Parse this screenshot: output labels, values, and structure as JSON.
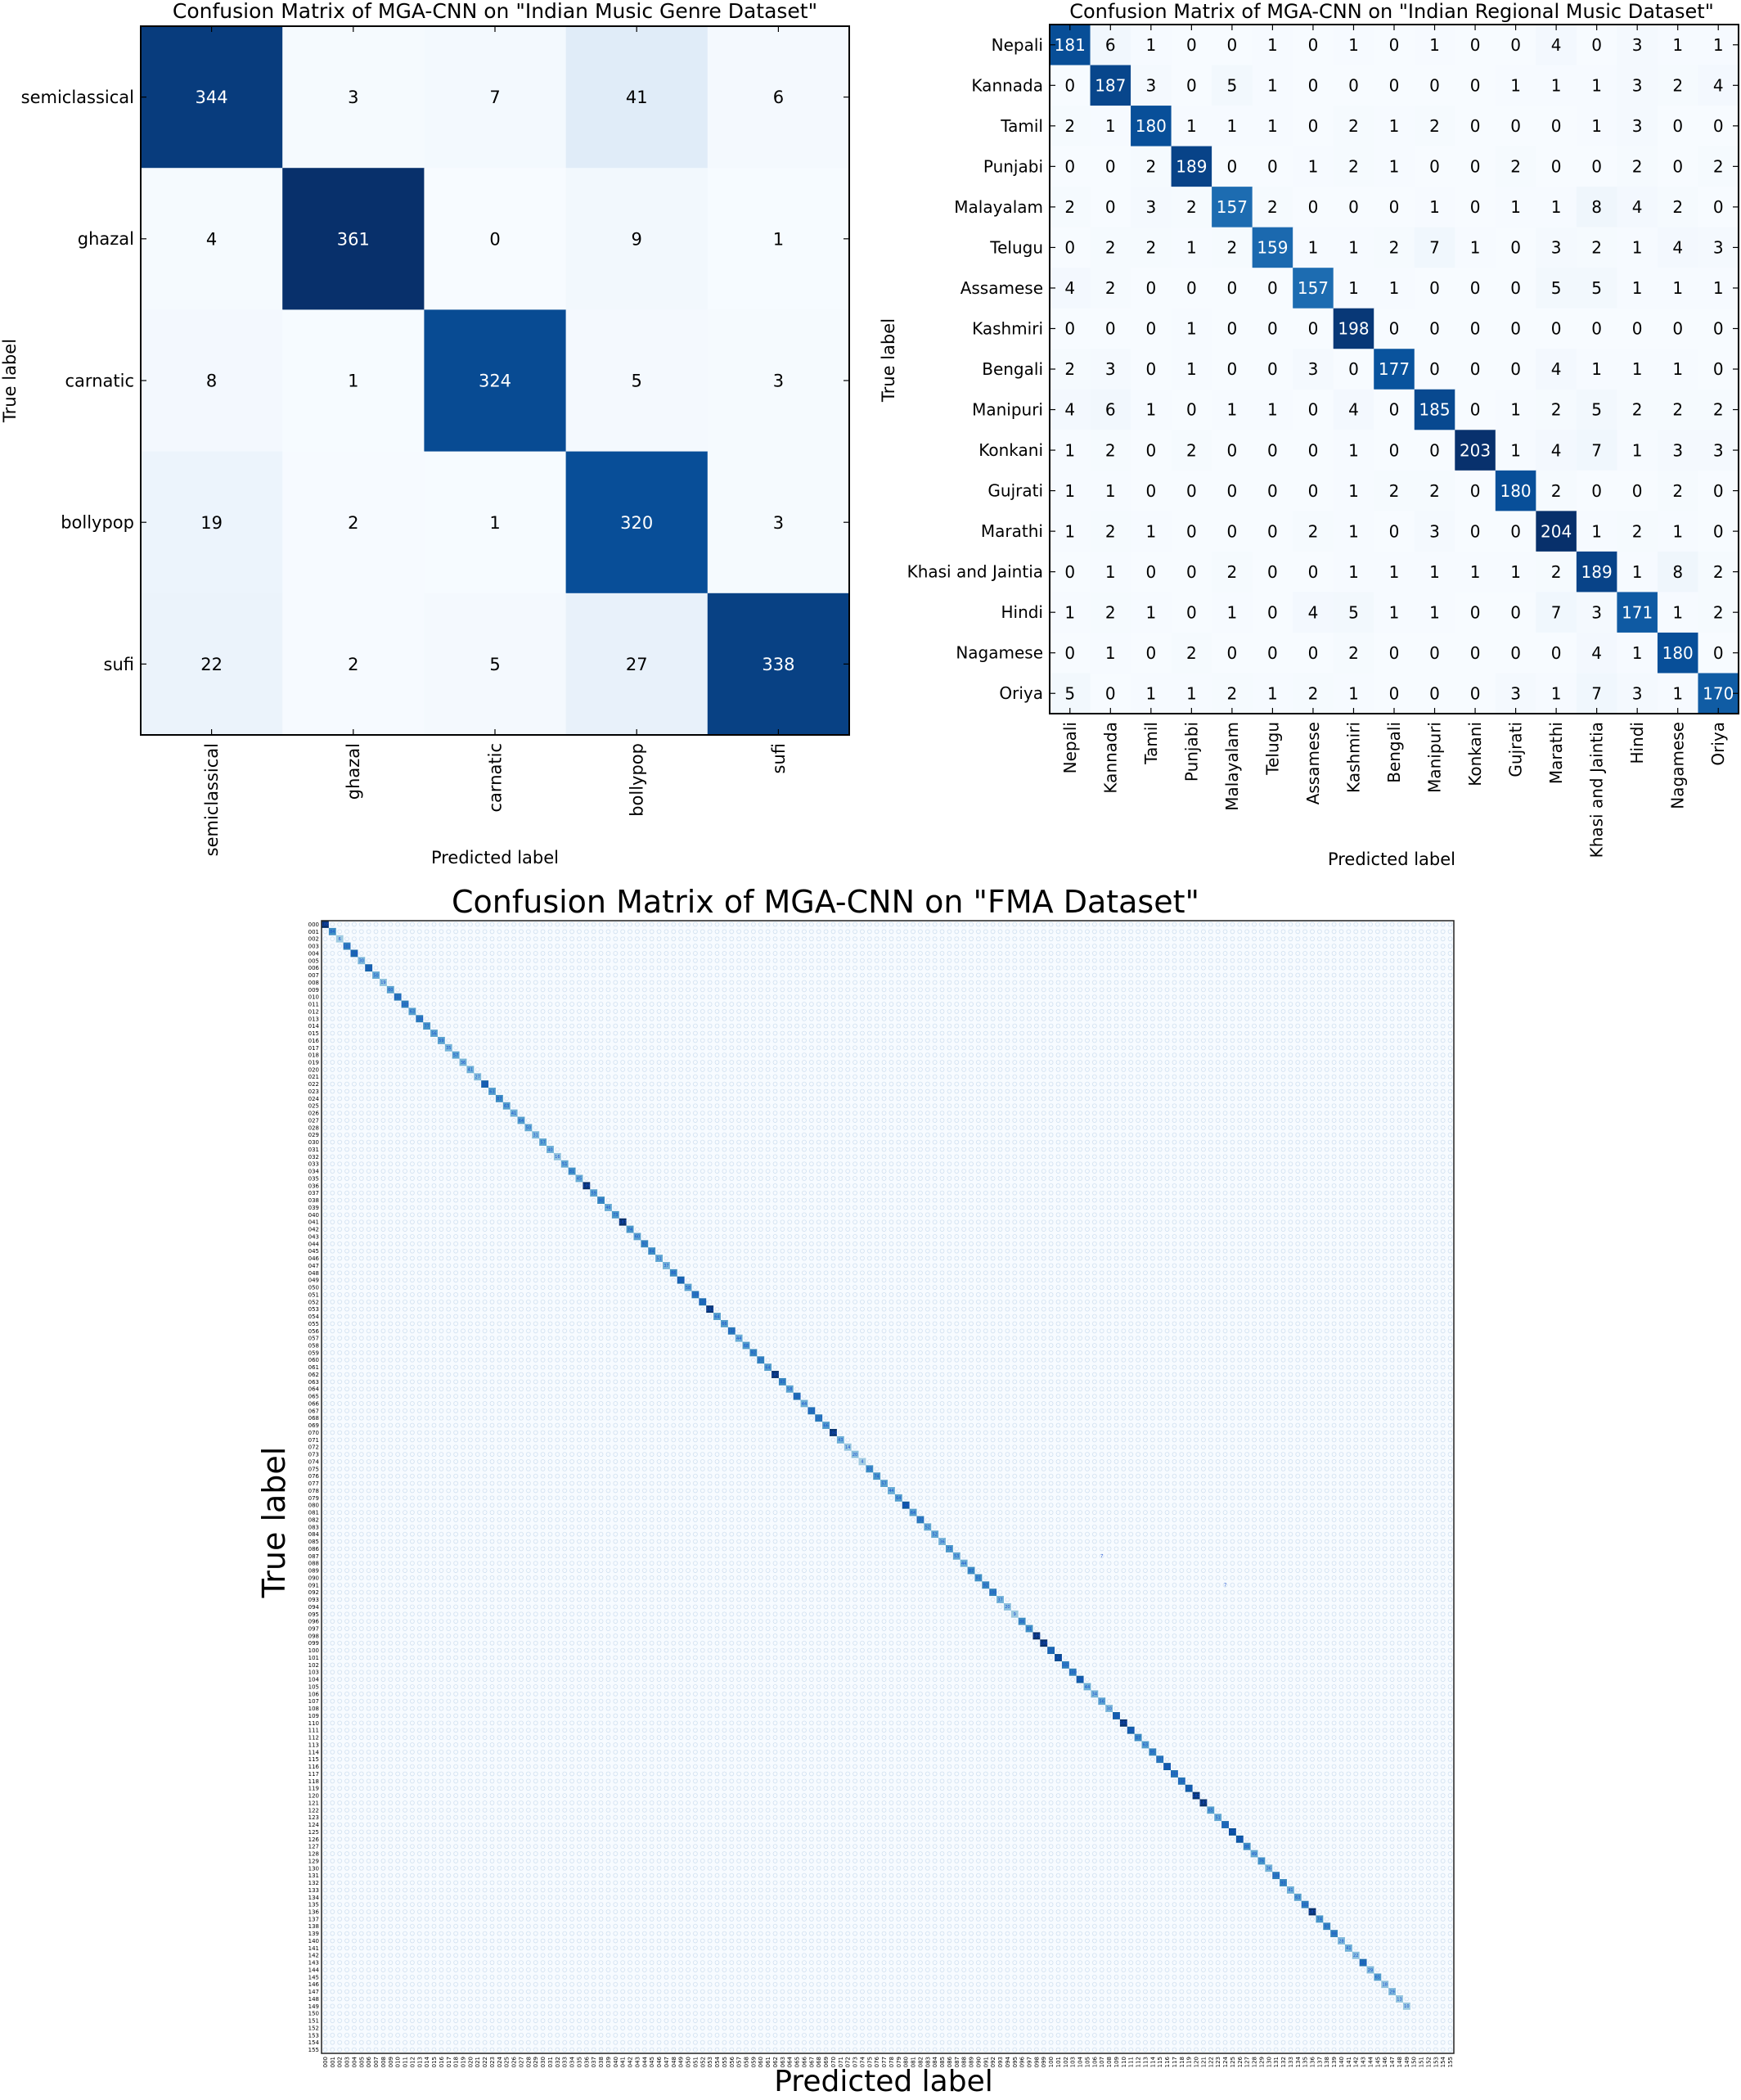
{
  "chart_data": [
    {
      "type": "heatmap",
      "title": "Confusion Matrix of MGA-CNN on \"Indian Music Genre Dataset\"",
      "xlabel": "Predicted label",
      "ylabel": "True label",
      "labels": [
        "semiclassical",
        "ghazal",
        "carnatic",
        "bollypop",
        "sufi"
      ],
      "matrix": [
        [
          344,
          3,
          7,
          41,
          6
        ],
        [
          4,
          361,
          0,
          9,
          1
        ],
        [
          8,
          1,
          324,
          5,
          3
        ],
        [
          19,
          2,
          1,
          320,
          3
        ],
        [
          22,
          2,
          5,
          27,
          338
        ]
      ],
      "colormap": "Blues"
    },
    {
      "type": "heatmap",
      "title": "Confusion Matrix of MGA-CNN on \"Indian Regional Music Dataset\"",
      "xlabel": "Predicted label",
      "ylabel": "True label",
      "labels": [
        "Nepali",
        "Kannada",
        "Tamil",
        "Punjabi",
        "Malayalam",
        "Telugu",
        "Assamese",
        "Kashmiri",
        "Bengali",
        "Manipuri",
        "Konkani",
        "Gujrati",
        "Marathi",
        "Khasi and Jaintia",
        "Hindi",
        "Nagamese",
        "Oriya"
      ],
      "matrix": [
        [
          181,
          6,
          1,
          0,
          0,
          1,
          0,
          1,
          0,
          1,
          0,
          0,
          4,
          0,
          3,
          1,
          1
        ],
        [
          0,
          187,
          3,
          0,
          5,
          1,
          0,
          0,
          0,
          0,
          0,
          1,
          1,
          1,
          3,
          2,
          4
        ],
        [
          2,
          1,
          180,
          1,
          1,
          1,
          0,
          2,
          1,
          2,
          0,
          0,
          0,
          1,
          3,
          0,
          0
        ],
        [
          0,
          0,
          2,
          189,
          0,
          0,
          1,
          2,
          1,
          0,
          0,
          2,
          0,
          0,
          2,
          0,
          2
        ],
        [
          2,
          0,
          3,
          2,
          157,
          2,
          0,
          0,
          0,
          1,
          0,
          1,
          1,
          8,
          4,
          2,
          0
        ],
        [
          0,
          2,
          2,
          1,
          2,
          159,
          1,
          1,
          2,
          7,
          1,
          0,
          3,
          2,
          1,
          4,
          3
        ],
        [
          4,
          2,
          0,
          0,
          0,
          0,
          157,
          1,
          1,
          0,
          0,
          0,
          5,
          5,
          1,
          1,
          1
        ],
        [
          0,
          0,
          0,
          1,
          0,
          0,
          0,
          198,
          0,
          0,
          0,
          0,
          0,
          0,
          0,
          0,
          0
        ],
        [
          2,
          3,
          0,
          1,
          0,
          0,
          3,
          0,
          177,
          0,
          0,
          0,
          4,
          1,
          1,
          1,
          0
        ],
        [
          4,
          6,
          1,
          0,
          1,
          1,
          0,
          4,
          0,
          185,
          0,
          1,
          2,
          5,
          2,
          2,
          2
        ],
        [
          1,
          2,
          0,
          2,
          0,
          0,
          0,
          1,
          0,
          0,
          203,
          1,
          4,
          7,
          1,
          3,
          3
        ],
        [
          1,
          1,
          0,
          0,
          0,
          0,
          0,
          1,
          2,
          2,
          0,
          180,
          2,
          0,
          0,
          2,
          0
        ],
        [
          1,
          2,
          1,
          0,
          0,
          0,
          2,
          1,
          0,
          3,
          0,
          0,
          204,
          1,
          2,
          1,
          0
        ],
        [
          0,
          1,
          0,
          0,
          2,
          0,
          0,
          1,
          1,
          1,
          1,
          1,
          2,
          189,
          1,
          8,
          2
        ],
        [
          1,
          2,
          1,
          0,
          1,
          0,
          4,
          5,
          1,
          1,
          0,
          0,
          7,
          3,
          171,
          1,
          2
        ],
        [
          0,
          1,
          0,
          2,
          0,
          0,
          0,
          2,
          0,
          0,
          0,
          0,
          0,
          4,
          1,
          180,
          0
        ],
        [
          5,
          0,
          1,
          1,
          2,
          1,
          2,
          1,
          0,
          0,
          0,
          3,
          1,
          7,
          3,
          1,
          170
        ]
      ],
      "colormap": "Blues"
    },
    {
      "type": "heatmap",
      "title": "Confusion Matrix of MGA-CNN on \"FMA Dataset\"",
      "xlabel": "Predicted label",
      "ylabel": "True label",
      "class_count": 156,
      "labels": [
        "000",
        "001",
        "002",
        "003",
        "004",
        "005",
        "006",
        "007",
        "008",
        "009",
        "010",
        "011",
        "012",
        "013",
        "014",
        "015",
        "016",
        "017",
        "018",
        "019",
        "020",
        "021",
        "022",
        "023",
        "024",
        "025",
        "026",
        "027",
        "028",
        "029",
        "030",
        "031",
        "032",
        "033",
        "034",
        "035",
        "036",
        "037",
        "038",
        "039",
        "040",
        "041",
        "042",
        "043",
        "044",
        "045",
        "046",
        "047",
        "048",
        "049",
        "050",
        "051",
        "052",
        "053",
        "054",
        "055",
        "056",
        "057",
        "058",
        "059",
        "060",
        "061",
        "062",
        "063",
        "064",
        "065",
        "066",
        "067",
        "068",
        "069",
        "070",
        "071",
        "072",
        "073",
        "074",
        "075",
        "076",
        "077",
        "078",
        "079",
        "080",
        "081",
        "082",
        "083",
        "084",
        "085",
        "086",
        "087",
        "088",
        "089",
        "090",
        "091",
        "092",
        "093",
        "094",
        "095",
        "096",
        "097",
        "098",
        "099",
        "100",
        "101",
        "102",
        "103",
        "104",
        "105",
        "106",
        "107",
        "108",
        "109",
        "110",
        "111",
        "112",
        "113",
        "114",
        "115",
        "116",
        "117",
        "118",
        "119",
        "120",
        "121",
        "122",
        "123",
        "124",
        "125",
        "126",
        "127",
        "128",
        "129",
        "130",
        "131",
        "132",
        "133",
        "134",
        "135",
        "136",
        "137",
        "138",
        "139",
        "140",
        "141",
        "142",
        "143",
        "144",
        "145",
        "146",
        "147",
        "148",
        "149",
        "150",
        "151",
        "152",
        "153",
        "154",
        "155"
      ],
      "diagonal": [
        188,
        84,
        6,
        102,
        128,
        30,
        131,
        50,
        19,
        60,
        112,
        103,
        63,
        104,
        77,
        56,
        59,
        35,
        57,
        36,
        41,
        27,
        133,
        63,
        87,
        63,
        41,
        64,
        50,
        31,
        57,
        40,
        16,
        51,
        81,
        45,
        189,
        59,
        90,
        46,
        73,
        187,
        74,
        60,
        92,
        84,
        51,
        37,
        86,
        129,
        58,
        108,
        120,
        182,
        64,
        66,
        110,
        44,
        68,
        92,
        97,
        64,
        187,
        93,
        58,
        120,
        44,
        115,
        107,
        66,
        184,
        43,
        14,
        20,
        4,
        83,
        74,
        57,
        44,
        64,
        146,
        64,
        102,
        52,
        52,
        36,
        73,
        53,
        44,
        87,
        81,
        92,
        100,
        37,
        20,
        9,
        86,
        81,
        189,
        188,
        127,
        163,
        102,
        100,
        140,
        44,
        34,
        56,
        30,
        136,
        183,
        138,
        87,
        63,
        95,
        107,
        140,
        114,
        114,
        137,
        182,
        187,
        65,
        51,
        120,
        155,
        145,
        86,
        49,
        76,
        36,
        104,
        93,
        41,
        63,
        102,
        187,
        74,
        93,
        98,
        28,
        41,
        22,
        121,
        29,
        65,
        18,
        29,
        13,
        10,
        0,
        0,
        0,
        0,
        0,
        0
      ],
      "off_diagonal": [
        {
          "true": "087",
          "pred": "107",
          "value": 7
        },
        {
          "true": "091",
          "pred": "124",
          "value": 7
        }
      ],
      "colormap": "Blues"
    }
  ]
}
